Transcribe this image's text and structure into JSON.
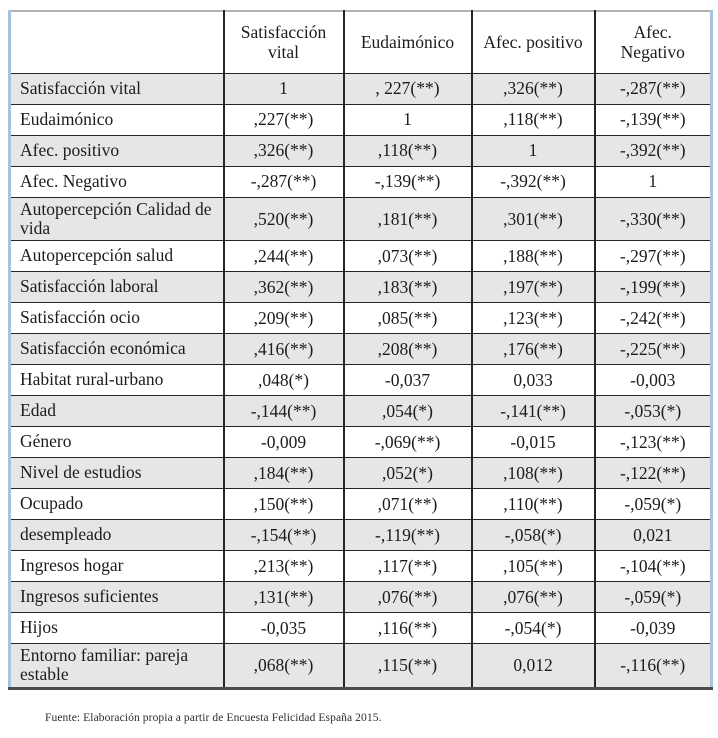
{
  "theme": {
    "border-blue": "#a8c4dd",
    "border-top-gray": "#b3b3b3",
    "border-bottom-dark": "#4d4d4d",
    "grid-line": "#262626",
    "row-shade": "#e6e6e6",
    "text": "#1c1c1c"
  },
  "table": {
    "columns": [
      "",
      "Satisfacción vital",
      "Eudaimónico",
      "Afec. positivo",
      "Afec. Negativo"
    ],
    "rows": [
      {
        "label": "Satisfacción vital",
        "values": [
          "1",
          ", 227(**)",
          ",326(**)",
          "-,287(**)"
        ]
      },
      {
        "label": "Eudaimónico",
        "values": [
          ",227(**)",
          "1",
          ",118(**)",
          "-,139(**)"
        ]
      },
      {
        "label": "Afec. positivo",
        "values": [
          ",326(**)",
          ",118(**)",
          "1",
          "-,392(**)"
        ]
      },
      {
        "label": "Afec. Negativo",
        "values": [
          "-,287(**)",
          "-,139(**)",
          "-,392(**)",
          "1"
        ]
      },
      {
        "label": "Autopercepción Calidad de vida",
        "values": [
          ",520(**)",
          ",181(**)",
          ",301(**)",
          "-,330(**)"
        ]
      },
      {
        "label": "Autopercepción salud",
        "values": [
          ",244(**)",
          ",073(**)",
          ",188(**)",
          "-,297(**)"
        ]
      },
      {
        "label": "Satisfacción laboral",
        "values": [
          ",362(**)",
          ",183(**)",
          ",197(**)",
          "-,199(**)"
        ]
      },
      {
        "label": "Satisfacción ocio",
        "values": [
          ",209(**)",
          ",085(**)",
          ",123(**)",
          "-,242(**)"
        ]
      },
      {
        "label": "Satisfacción económica",
        "values": [
          ",416(**)",
          ",208(**)",
          ",176(**)",
          "-,225(**)"
        ]
      },
      {
        "label": "Habitat rural-urbano",
        "values": [
          ",048(*)",
          "-0,037",
          "0,033",
          "-0,003"
        ]
      },
      {
        "label": "Edad",
        "values": [
          "-,144(**)",
          ",054(*)",
          "-,141(**)",
          "-,053(*)"
        ]
      },
      {
        "label": "Género",
        "values": [
          "-0,009",
          "-,069(**)",
          "-0,015",
          "-,123(**)"
        ]
      },
      {
        "label": "Nivel de estudios",
        "values": [
          ",184(**)",
          ",052(*)",
          ",108(**)",
          "-,122(**)"
        ]
      },
      {
        "label": "Ocupado",
        "values": [
          ",150(**)",
          ",071(**)",
          ",110(**)",
          "-,059(*)"
        ]
      },
      {
        "label": "desempleado",
        "values": [
          "-,154(**)",
          "-,119(**)",
          "-,058(*)",
          "0,021"
        ]
      },
      {
        "label": "Ingresos hogar",
        "values": [
          ",213(**)",
          ",117(**)",
          ",105(**)",
          "-,104(**)"
        ]
      },
      {
        "label": "Ingresos suficientes",
        "values": [
          ",131(**)",
          ",076(**)",
          ",076(**)",
          "-,059(*)"
        ]
      },
      {
        "label": "Hijos",
        "values": [
          "-0,035",
          ",116(**)",
          "-,054(*)",
          "-0,039"
        ]
      },
      {
        "label": "Entorno familiar: pareja estable",
        "values": [
          ",068(**)",
          ",115(**)",
          "0,012",
          "-,116(**)"
        ]
      }
    ]
  },
  "footer": {
    "source_note": "Fuente: Elaboración propia a partir de Encuesta Felicidad España 2015."
  }
}
